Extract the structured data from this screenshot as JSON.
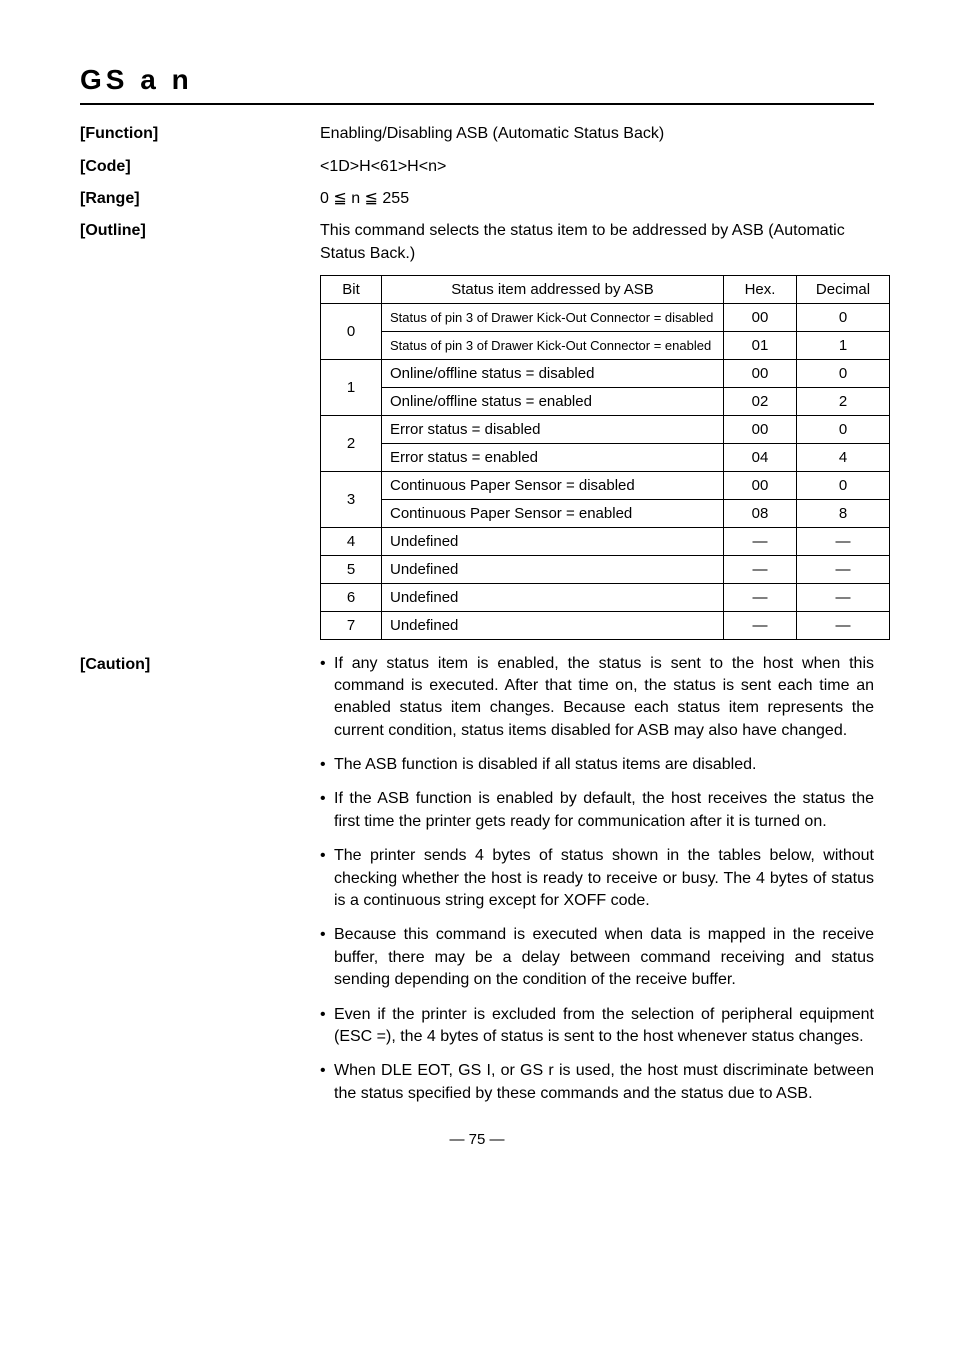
{
  "title": "GS a n",
  "sections": {
    "function": {
      "label": "[Function]",
      "value": "Enabling/Disabling ASB (Automatic Status Back)"
    },
    "code": {
      "label": "[Code]",
      "value": "<1D>H<61>H<n>"
    },
    "range": {
      "label": "[Range]",
      "value": "0 ≦ n ≦ 255"
    },
    "outline": {
      "label": "[Outline]",
      "value": "This command selects the status item to be addressed by ASB (Automatic Status Back.)"
    },
    "caution": {
      "label": "[Caution]"
    }
  },
  "table": {
    "headers": {
      "bit": "Bit",
      "status": "Status item addressed by ASB",
      "hex": "Hex.",
      "dec": "Decimal"
    },
    "rows": [
      {
        "bit": "0",
        "status": "Status of pin 3 of Drawer Kick-Out Connector = disabled",
        "hex": "00",
        "dec": "0",
        "small": true
      },
      {
        "bit": "",
        "status": "Status of pin 3 of Drawer Kick-Out Connector = enabled",
        "hex": "01",
        "dec": "1",
        "small": true
      },
      {
        "bit": "1",
        "status": "Online/offline status = disabled",
        "hex": "00",
        "dec": "0"
      },
      {
        "bit": "",
        "status": "Online/offline status = enabled",
        "hex": "02",
        "dec": "2"
      },
      {
        "bit": "2",
        "status": "Error status = disabled",
        "hex": "00",
        "dec": "0"
      },
      {
        "bit": "",
        "status": "Error status = enabled",
        "hex": "04",
        "dec": "4"
      },
      {
        "bit": "3",
        "status": "Continuous Paper Sensor = disabled",
        "hex": "00",
        "dec": "0"
      },
      {
        "bit": "",
        "status": "Continuous Paper Sensor = enabled",
        "hex": "08",
        "dec": "8"
      },
      {
        "bit": "4",
        "status": "Undefined",
        "hex": "—",
        "dec": "—"
      },
      {
        "bit": "5",
        "status": "Undefined",
        "hex": "—",
        "dec": "—"
      },
      {
        "bit": "6",
        "status": "Undefined",
        "hex": "—",
        "dec": "—"
      },
      {
        "bit": "7",
        "status": "Undefined",
        "hex": "—",
        "dec": "—"
      }
    ]
  },
  "cautions": [
    "If any status item is enabled, the status is sent to the host when this command is executed. After that time on, the status is sent each time an enabled status item changes. Because each status item represents the current condition, status items disabled for ASB may also have changed.",
    "The ASB function is disabled if all status items are disabled.",
    "If the ASB function is enabled by default, the host receives the status the first time the printer gets ready for communication after it is turned on.",
    "The printer sends 4 bytes of status shown in the tables below, without checking whether the host is ready to receive or busy. The 4 bytes of status is a continuous string except for XOFF code.",
    "Because this command is executed when data is mapped in the receive buffer, there may be a delay between command receiving and status sending depending on the condition of the receive buffer.",
    "Even if the printer is excluded from the selection of peripheral equipment (ESC =), the 4 bytes of status is sent to the host whenever status changes.",
    "When DLE EOT, GS I, or GS r is used, the host must discriminate between the status specified by these commands and the status due to ASB."
  ],
  "page": "— 75 —"
}
